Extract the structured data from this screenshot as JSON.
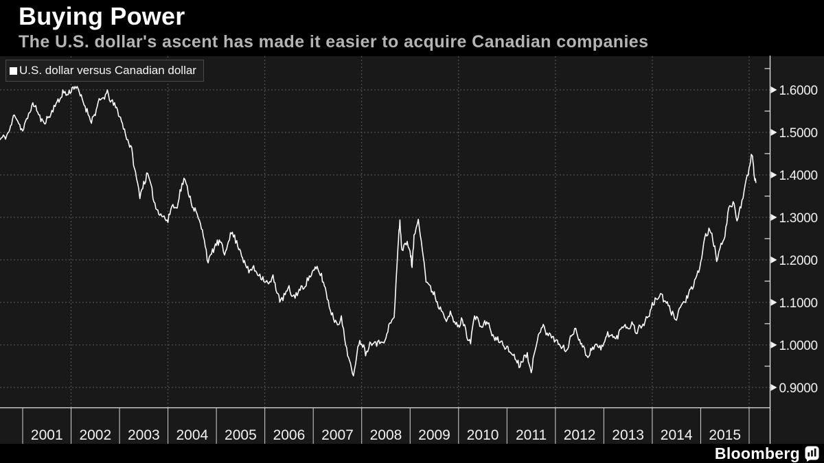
{
  "header": {
    "title": "Buying Power",
    "subtitle": "The U.S. dollar's ascent has made it easier to acquire Canadian companies"
  },
  "legend": {
    "label": "U.S. dollar versus Canadian dollar"
  },
  "footer": {
    "brand": "Bloomberg"
  },
  "colors": {
    "page_bg": "#000000",
    "panel_bg": "#191919",
    "line": "#ffffff",
    "grid": "#6e6e6e",
    "axis": "#e8e8e8",
    "tick_label": "#f2f2f2",
    "separator": "#d8d8d8",
    "subtitle": "#b4b4b4"
  },
  "chart_data": {
    "type": "line",
    "title": "Buying Power",
    "subtitle": "The U.S. dollar's ascent has made it easier to acquire Canadian companies",
    "legend_position": "top-left",
    "grid": "dotted",
    "x_axis": {
      "range": [
        2000.532,
        2016.433
      ],
      "tick_labels": [
        "2001",
        "2002",
        "2003",
        "2004",
        "2005",
        "2006",
        "2007",
        "2008",
        "2009",
        "2010",
        "2011",
        "2012",
        "2013",
        "2014",
        "2015"
      ],
      "boundary_years": [
        2001,
        2002,
        2003,
        2004,
        2005,
        2006,
        2007,
        2008,
        2009,
        2010,
        2011,
        2012,
        2013,
        2014,
        2015,
        2016
      ],
      "gridline_years": [
        2002,
        2004,
        2006,
        2008,
        2010,
        2012,
        2014,
        2016
      ]
    },
    "y_axis": {
      "range": [
        0.853,
        1.679
      ],
      "ticks": [
        {
          "v": 1.6,
          "label": "1.6000"
        },
        {
          "v": 1.5,
          "label": "1.5000"
        },
        {
          "v": 1.4,
          "label": "1.4000"
        },
        {
          "v": 1.3,
          "label": "1.3000"
        },
        {
          "v": 1.2,
          "label": "1.2000"
        },
        {
          "v": 1.1,
          "label": "1.1000"
        },
        {
          "v": 1.0,
          "label": "1.0000"
        },
        {
          "v": 0.9,
          "label": "0.9000"
        }
      ],
      "minor_ticks": [
        0.95,
        1.05,
        1.15,
        1.25,
        1.35,
        1.45,
        1.55,
        1.65
      ],
      "side": "right"
    },
    "series": [
      {
        "name": "U.S. dollar versus Canadian dollar",
        "points": [
          [
            2000.5,
            1.48
          ],
          [
            2000.58,
            1.487
          ],
          [
            2000.67,
            1.492
          ],
          [
            2000.75,
            1.51
          ],
          [
            2000.83,
            1.546
          ],
          [
            2000.92,
            1.522
          ],
          [
            2001.0,
            1.502
          ],
          [
            2001.08,
            1.528
          ],
          [
            2001.17,
            1.558
          ],
          [
            2001.25,
            1.566
          ],
          [
            2001.33,
            1.54
          ],
          [
            2001.42,
            1.522
          ],
          [
            2001.5,
            1.532
          ],
          [
            2001.58,
            1.541
          ],
          [
            2001.67,
            1.568
          ],
          [
            2001.75,
            1.572
          ],
          [
            2001.83,
            1.596
          ],
          [
            2001.92,
            1.588
          ],
          [
            2002.0,
            1.6
          ],
          [
            2002.08,
            1.61
          ],
          [
            2002.17,
            1.592
          ],
          [
            2002.25,
            1.572
          ],
          [
            2002.33,
            1.55
          ],
          [
            2002.42,
            1.528
          ],
          [
            2002.5,
            1.546
          ],
          [
            2002.58,
            1.572
          ],
          [
            2002.67,
            1.582
          ],
          [
            2002.75,
            1.592
          ],
          [
            2002.83,
            1.572
          ],
          [
            2002.92,
            1.56
          ],
          [
            2003.0,
            1.54
          ],
          [
            2003.08,
            1.512
          ],
          [
            2003.17,
            1.482
          ],
          [
            2003.25,
            1.458
          ],
          [
            2003.33,
            1.402
          ],
          [
            2003.42,
            1.352
          ],
          [
            2003.5,
            1.38
          ],
          [
            2003.58,
            1.402
          ],
          [
            2003.67,
            1.362
          ],
          [
            2003.75,
            1.322
          ],
          [
            2003.83,
            1.312
          ],
          [
            2003.92,
            1.3
          ],
          [
            2004.0,
            1.29
          ],
          [
            2004.08,
            1.33
          ],
          [
            2004.17,
            1.32
          ],
          [
            2004.25,
            1.36
          ],
          [
            2004.33,
            1.39
          ],
          [
            2004.42,
            1.362
          ],
          [
            2004.5,
            1.33
          ],
          [
            2004.58,
            1.312
          ],
          [
            2004.67,
            1.282
          ],
          [
            2004.75,
            1.252
          ],
          [
            2004.83,
            1.192
          ],
          [
            2004.92,
            1.22
          ],
          [
            2005.0,
            1.238
          ],
          [
            2005.08,
            1.242
          ],
          [
            2005.17,
            1.212
          ],
          [
            2005.25,
            1.25
          ],
          [
            2005.33,
            1.264
          ],
          [
            2005.42,
            1.24
          ],
          [
            2005.5,
            1.222
          ],
          [
            2005.58,
            1.192
          ],
          [
            2005.67,
            1.172
          ],
          [
            2005.75,
            1.182
          ],
          [
            2005.83,
            1.172
          ],
          [
            2005.92,
            1.162
          ],
          [
            2006.0,
            1.152
          ],
          [
            2006.08,
            1.142
          ],
          [
            2006.17,
            1.158
          ],
          [
            2006.25,
            1.128
          ],
          [
            2006.33,
            1.1
          ],
          [
            2006.42,
            1.12
          ],
          [
            2006.5,
            1.132
          ],
          [
            2006.58,
            1.112
          ],
          [
            2006.67,
            1.122
          ],
          [
            2006.75,
            1.132
          ],
          [
            2006.83,
            1.142
          ],
          [
            2006.92,
            1.16
          ],
          [
            2007.0,
            1.172
          ],
          [
            2007.08,
            1.18
          ],
          [
            2007.17,
            1.162
          ],
          [
            2007.25,
            1.132
          ],
          [
            2007.33,
            1.092
          ],
          [
            2007.42,
            1.062
          ],
          [
            2007.5,
            1.052
          ],
          [
            2007.58,
            1.062
          ],
          [
            2007.67,
            1.002
          ],
          [
            2007.75,
            0.962
          ],
          [
            2007.83,
            0.92
          ],
          [
            2007.92,
            1.002
          ],
          [
            2008.0,
            1.008
          ],
          [
            2008.08,
            0.982
          ],
          [
            2008.17,
            1.002
          ],
          [
            2008.25,
            1.012
          ],
          [
            2008.33,
            1.002
          ],
          [
            2008.42,
            1.012
          ],
          [
            2008.5,
            1.012
          ],
          [
            2008.58,
            1.052
          ],
          [
            2008.67,
            1.062
          ],
          [
            2008.75,
            1.232
          ],
          [
            2008.79,
            1.292
          ],
          [
            2008.83,
            1.222
          ],
          [
            2008.92,
            1.24
          ],
          [
            2009.0,
            1.225
          ],
          [
            2009.04,
            1.182
          ],
          [
            2009.08,
            1.252
          ],
          [
            2009.17,
            1.298
          ],
          [
            2009.25,
            1.232
          ],
          [
            2009.33,
            1.152
          ],
          [
            2009.42,
            1.132
          ],
          [
            2009.5,
            1.122
          ],
          [
            2009.58,
            1.092
          ],
          [
            2009.67,
            1.082
          ],
          [
            2009.75,
            1.062
          ],
          [
            2009.83,
            1.072
          ],
          [
            2009.92,
            1.052
          ],
          [
            2010.0,
            1.042
          ],
          [
            2010.08,
            1.062
          ],
          [
            2010.17,
            1.022
          ],
          [
            2010.25,
            1.01
          ],
          [
            2010.33,
            1.068
          ],
          [
            2010.42,
            1.052
          ],
          [
            2010.5,
            1.042
          ],
          [
            2010.58,
            1.058
          ],
          [
            2010.67,
            1.032
          ],
          [
            2010.75,
            1.012
          ],
          [
            2010.83,
            1.012
          ],
          [
            2010.92,
            1.002
          ],
          [
            2011.0,
            0.992
          ],
          [
            2011.08,
            0.982
          ],
          [
            2011.17,
            0.972
          ],
          [
            2011.25,
            0.952
          ],
          [
            2011.33,
            0.968
          ],
          [
            2011.42,
            0.978
          ],
          [
            2011.5,
            0.942
          ],
          [
            2011.58,
            0.982
          ],
          [
            2011.67,
            1.032
          ],
          [
            2011.75,
            1.052
          ],
          [
            2011.83,
            1.022
          ],
          [
            2011.92,
            1.022
          ],
          [
            2012.0,
            1.012
          ],
          [
            2012.08,
            1.0
          ],
          [
            2012.17,
            0.992
          ],
          [
            2012.25,
            0.99
          ],
          [
            2012.33,
            1.022
          ],
          [
            2012.42,
            1.04
          ],
          [
            2012.5,
            1.012
          ],
          [
            2012.58,
            0.992
          ],
          [
            2012.67,
            0.972
          ],
          [
            2012.75,
            0.992
          ],
          [
            2012.83,
            1.0
          ],
          [
            2012.92,
            0.992
          ],
          [
            2013.0,
            1.0
          ],
          [
            2013.08,
            1.028
          ],
          [
            2013.17,
            1.022
          ],
          [
            2013.25,
            1.012
          ],
          [
            2013.33,
            1.032
          ],
          [
            2013.42,
            1.05
          ],
          [
            2013.5,
            1.04
          ],
          [
            2013.58,
            1.05
          ],
          [
            2013.67,
            1.032
          ],
          [
            2013.75,
            1.042
          ],
          [
            2013.83,
            1.052
          ],
          [
            2013.92,
            1.068
          ],
          [
            2014.0,
            1.092
          ],
          [
            2014.08,
            1.108
          ],
          [
            2014.17,
            1.12
          ],
          [
            2014.25,
            1.102
          ],
          [
            2014.33,
            1.092
          ],
          [
            2014.42,
            1.072
          ],
          [
            2014.5,
            1.064
          ],
          [
            2014.58,
            1.09
          ],
          [
            2014.67,
            1.102
          ],
          [
            2014.75,
            1.12
          ],
          [
            2014.83,
            1.132
          ],
          [
            2014.92,
            1.16
          ],
          [
            2015.0,
            1.192
          ],
          [
            2015.08,
            1.25
          ],
          [
            2015.17,
            1.272
          ],
          [
            2015.25,
            1.25
          ],
          [
            2015.33,
            1.2
          ],
          [
            2015.42,
            1.232
          ],
          [
            2015.5,
            1.262
          ],
          [
            2015.58,
            1.32
          ],
          [
            2015.67,
            1.334
          ],
          [
            2015.75,
            1.295
          ],
          [
            2015.83,
            1.33
          ],
          [
            2015.92,
            1.372
          ],
          [
            2016.0,
            1.412
          ],
          [
            2016.06,
            1.452
          ],
          [
            2016.1,
            1.405
          ],
          [
            2016.14,
            1.382
          ]
        ]
      }
    ]
  }
}
